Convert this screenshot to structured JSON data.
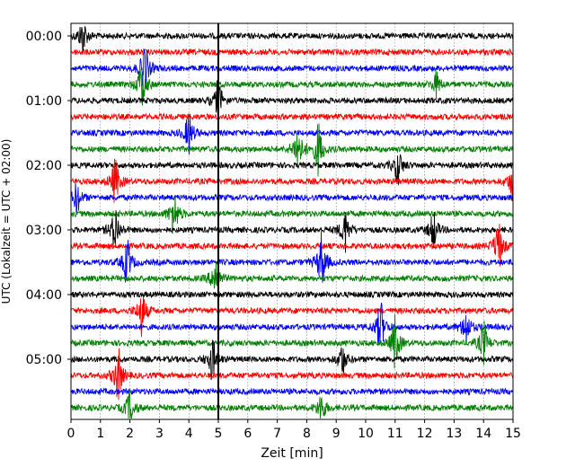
{
  "chart_data": {
    "type": "line",
    "title": "",
    "xlabel": "Zeit  [min]",
    "ylabel": "UTC (Lokalzeit = UTC + 02:00)",
    "xlim": [
      0,
      15
    ],
    "x_ticks": [
      "0",
      "1",
      "2",
      "3",
      "4",
      "5",
      "6",
      "7",
      "8",
      "9",
      "10",
      "11",
      "12",
      "13",
      "14",
      "15"
    ],
    "y_tick_labels": [
      {
        "label": "00:00",
        "trace": 0
      },
      {
        "label": "01:00",
        "trace": 4
      },
      {
        "label": "02:00",
        "trace": 8
      },
      {
        "label": "03:00",
        "trace": 12
      },
      {
        "label": "04:00",
        "trace": 16
      },
      {
        "label": "05:00",
        "trace": 20
      }
    ],
    "trace_count": 24,
    "trace_interval_min": 15,
    "trace_colors": [
      "#000000",
      "#ff0000",
      "#0000ff",
      "#008000"
    ],
    "grid": "vertical dotted",
    "vertical_marker_minute": 5.0,
    "events": [
      {
        "trace": 0,
        "minute": 0.4,
        "amplitude": 1.8
      },
      {
        "trace": 2,
        "minute": 2.5,
        "amplitude": 2.5
      },
      {
        "trace": 3,
        "minute": 2.4,
        "amplitude": 2.2
      },
      {
        "trace": 3,
        "minute": 12.4,
        "amplitude": 1.2
      },
      {
        "trace": 4,
        "minute": 5.0,
        "amplitude": 2.0
      },
      {
        "trace": 6,
        "minute": 4.0,
        "amplitude": 2.0
      },
      {
        "trace": 7,
        "minute": 7.7,
        "amplitude": 2.5
      },
      {
        "trace": 7,
        "minute": 8.4,
        "amplitude": 2.5
      },
      {
        "trace": 8,
        "minute": 11.1,
        "amplitude": 1.8
      },
      {
        "trace": 9,
        "minute": 1.5,
        "amplitude": 2.2
      },
      {
        "trace": 9,
        "minute": 15.0,
        "amplitude": 2.0
      },
      {
        "trace": 10,
        "minute": 0.2,
        "amplitude": 1.5
      },
      {
        "trace": 11,
        "minute": 3.5,
        "amplitude": 2.2
      },
      {
        "trace": 12,
        "minute": 1.5,
        "amplitude": 2.2
      },
      {
        "trace": 12,
        "minute": 9.3,
        "amplitude": 2.0
      },
      {
        "trace": 12,
        "minute": 12.3,
        "amplitude": 1.8
      },
      {
        "trace": 13,
        "minute": 14.5,
        "amplitude": 2.5
      },
      {
        "trace": 14,
        "minute": 1.9,
        "amplitude": 2.2
      },
      {
        "trace": 14,
        "minute": 8.5,
        "amplitude": 2.8
      },
      {
        "trace": 15,
        "minute": 4.9,
        "amplitude": 2.0
      },
      {
        "trace": 17,
        "minute": 2.4,
        "amplitude": 2.2
      },
      {
        "trace": 18,
        "minute": 10.5,
        "amplitude": 2.5
      },
      {
        "trace": 18,
        "minute": 13.4,
        "amplitude": 1.8
      },
      {
        "trace": 19,
        "minute": 11.0,
        "amplitude": 2.5
      },
      {
        "trace": 19,
        "minute": 14.0,
        "amplitude": 2.0
      },
      {
        "trace": 20,
        "minute": 4.8,
        "amplitude": 2.0
      },
      {
        "trace": 20,
        "minute": 9.2,
        "amplitude": 1.5
      },
      {
        "trace": 21,
        "minute": 1.6,
        "amplitude": 2.5
      },
      {
        "trace": 23,
        "minute": 2.0,
        "amplitude": 1.8
      },
      {
        "trace": 23,
        "minute": 8.5,
        "amplitude": 1.5
      }
    ]
  }
}
